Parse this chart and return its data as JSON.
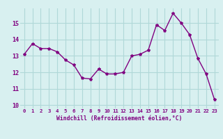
{
  "x": [
    0,
    1,
    2,
    3,
    4,
    5,
    6,
    7,
    8,
    9,
    10,
    11,
    12,
    13,
    14,
    15,
    16,
    17,
    18,
    19,
    20,
    21,
    22,
    23
  ],
  "y": [
    13.1,
    13.75,
    13.45,
    13.45,
    13.25,
    12.75,
    12.45,
    11.65,
    11.6,
    12.2,
    11.9,
    11.9,
    12.0,
    13.0,
    13.1,
    13.35,
    14.9,
    14.55,
    15.6,
    15.0,
    14.3,
    12.85,
    11.9,
    10.35
  ],
  "line_color": "#800080",
  "marker": "*",
  "marker_size": 3,
  "bg_color": "#d8f0f0",
  "grid_color": "#b0d8d8",
  "xlabel": "Windchill (Refroidissement éolien,°C)",
  "xlabel_color": "#800080",
  "tick_color": "#800080",
  "ylim": [
    9.8,
    15.9
  ],
  "yticks": [
    10,
    11,
    12,
    13,
    14,
    15
  ],
  "xlim": [
    -0.5,
    23.5
  ],
  "xtick_labels": [
    "0",
    "1",
    "2",
    "3",
    "4",
    "5",
    "6",
    "7",
    "8",
    "9",
    "10",
    "11",
    "12",
    "13",
    "14",
    "15",
    "16",
    "17",
    "18",
    "19",
    "20",
    "21",
    "22",
    "23"
  ]
}
